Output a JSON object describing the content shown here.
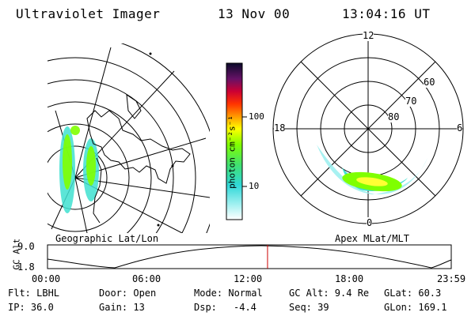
{
  "header": {
    "instrument": "Ultraviolet Imager",
    "date": "13 Nov 00",
    "time": "13:04:16 UT"
  },
  "colorbar": {
    "unit_label": "photon cm⁻²s⁻¹",
    "ticks": [
      "100",
      "10"
    ]
  },
  "polar_plot": {
    "mlt_labels": {
      "top": "12",
      "left": "18",
      "right": "6",
      "bottom": "0"
    },
    "lat_labels": [
      "60",
      "70",
      "80"
    ],
    "title": "Apex MLat/MLT"
  },
  "map_plot": {
    "title": "Geographic Lat/Lon"
  },
  "timeline": {
    "ylabel": "GC Alt",
    "y_ticks": [
      "9.0",
      "1.8"
    ],
    "x_ticks": [
      "00:00",
      "06:00",
      "12:00",
      "18:00",
      "23:59"
    ],
    "marker_fraction": 0.545
  },
  "status": {
    "flt": "Flt: LBHL",
    "door": "Door: Open",
    "mode": "Mode: Normal",
    "gc_alt": "GC Alt: 9.4 Re",
    "glat": "GLat: 60.3",
    "ip": "IP: 36.0",
    "gain": "Gain: 13",
    "dsp_label": "Dsp:",
    "dsp_value": "-4.4",
    "seq": "Seq: 39",
    "glon": "GLon: 169.1"
  },
  "colors": {
    "marker": "#cc0000",
    "aurora_outer": "#40e0d0",
    "aurora_mid": "#7fff00",
    "aurora_core": "#ffff33"
  }
}
